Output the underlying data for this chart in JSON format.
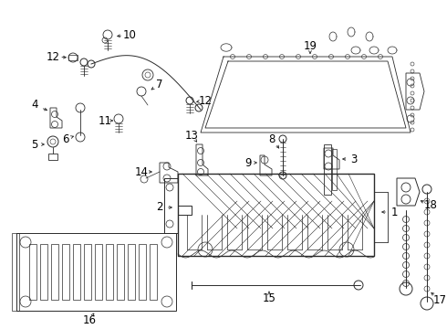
{
  "bg_color": "#ffffff",
  "line_color": "#2a2a2a",
  "label_color": "#000000",
  "font_size": 8.5,
  "dpi": 100,
  "figsize": [
    4.9,
    3.6
  ]
}
